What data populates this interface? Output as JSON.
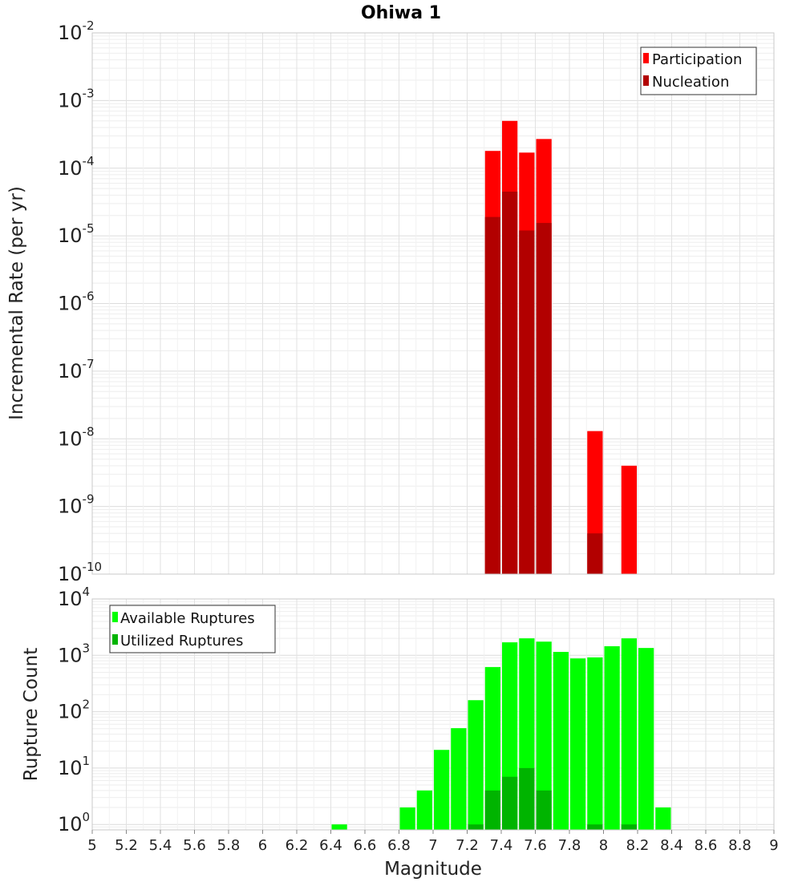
{
  "chart_data": [
    {
      "type": "bar",
      "title": "Ohiwa 1",
      "xlabel": "Magnitude",
      "ylabel": "Incremental Rate (per yr)",
      "yscale": "log",
      "xlim": [
        5,
        9
      ],
      "ylim": [
        1e-10,
        0.01
      ],
      "grid": true,
      "legend_position": "top-right",
      "bin_width": 0.1,
      "y_tick_exponents": [
        "-10",
        "-9",
        "-8",
        "-7",
        "-6",
        "-5",
        "-4",
        "-3",
        "-2"
      ],
      "series": [
        {
          "name": "Participation",
          "color": "#ff0000",
          "x": [
            7.35,
            7.45,
            7.55,
            7.65,
            7.95,
            8.15
          ],
          "values": [
            0.00018,
            0.0005,
            0.00017,
            0.00027,
            1.3e-08,
            4e-09
          ]
        },
        {
          "name": "Nucleation",
          "color": "#b20000",
          "x": [
            7.35,
            7.45,
            7.55,
            7.65,
            7.95
          ],
          "values": [
            1.9e-05,
            4.5e-05,
            1.2e-05,
            1.55e-05,
            4e-10
          ]
        }
      ]
    },
    {
      "type": "bar",
      "title": "",
      "xlabel": "Magnitude",
      "ylabel": "Rupture Count",
      "yscale": "log",
      "xlim": [
        5,
        9
      ],
      "ylim": [
        0.8,
        10000
      ],
      "grid": true,
      "legend_position": "top-left",
      "bin_width": 0.1,
      "x_ticks": [
        "5",
        "5.2",
        "5.4",
        "5.6",
        "5.8",
        "6",
        "6.2",
        "6.4",
        "6.6",
        "6.8",
        "7",
        "7.2",
        "7.4",
        "7.6",
        "7.8",
        "8",
        "8.2",
        "8.4",
        "8.6",
        "8.8",
        "9"
      ],
      "y_tick_exponents": [
        "0",
        "1",
        "2",
        "3",
        "4"
      ],
      "series": [
        {
          "name": "Available Ruptures",
          "color": "#00ff00",
          "x": [
            6.45,
            6.85,
            6.95,
            7.05,
            7.15,
            7.25,
            7.35,
            7.45,
            7.55,
            7.65,
            7.75,
            7.85,
            7.95,
            8.05,
            8.15,
            8.25,
            8.35
          ],
          "values": [
            1,
            2,
            4,
            21,
            51,
            160,
            620,
            1700,
            2000,
            1750,
            1150,
            880,
            920,
            1450,
            2000,
            1350,
            2
          ]
        },
        {
          "name": "Utilized Ruptures",
          "color": "#00b400",
          "x": [
            7.25,
            7.35,
            7.45,
            7.55,
            7.65,
            7.95,
            8.15
          ],
          "values": [
            1,
            4,
            7,
            10,
            4,
            1,
            1
          ]
        }
      ]
    }
  ]
}
